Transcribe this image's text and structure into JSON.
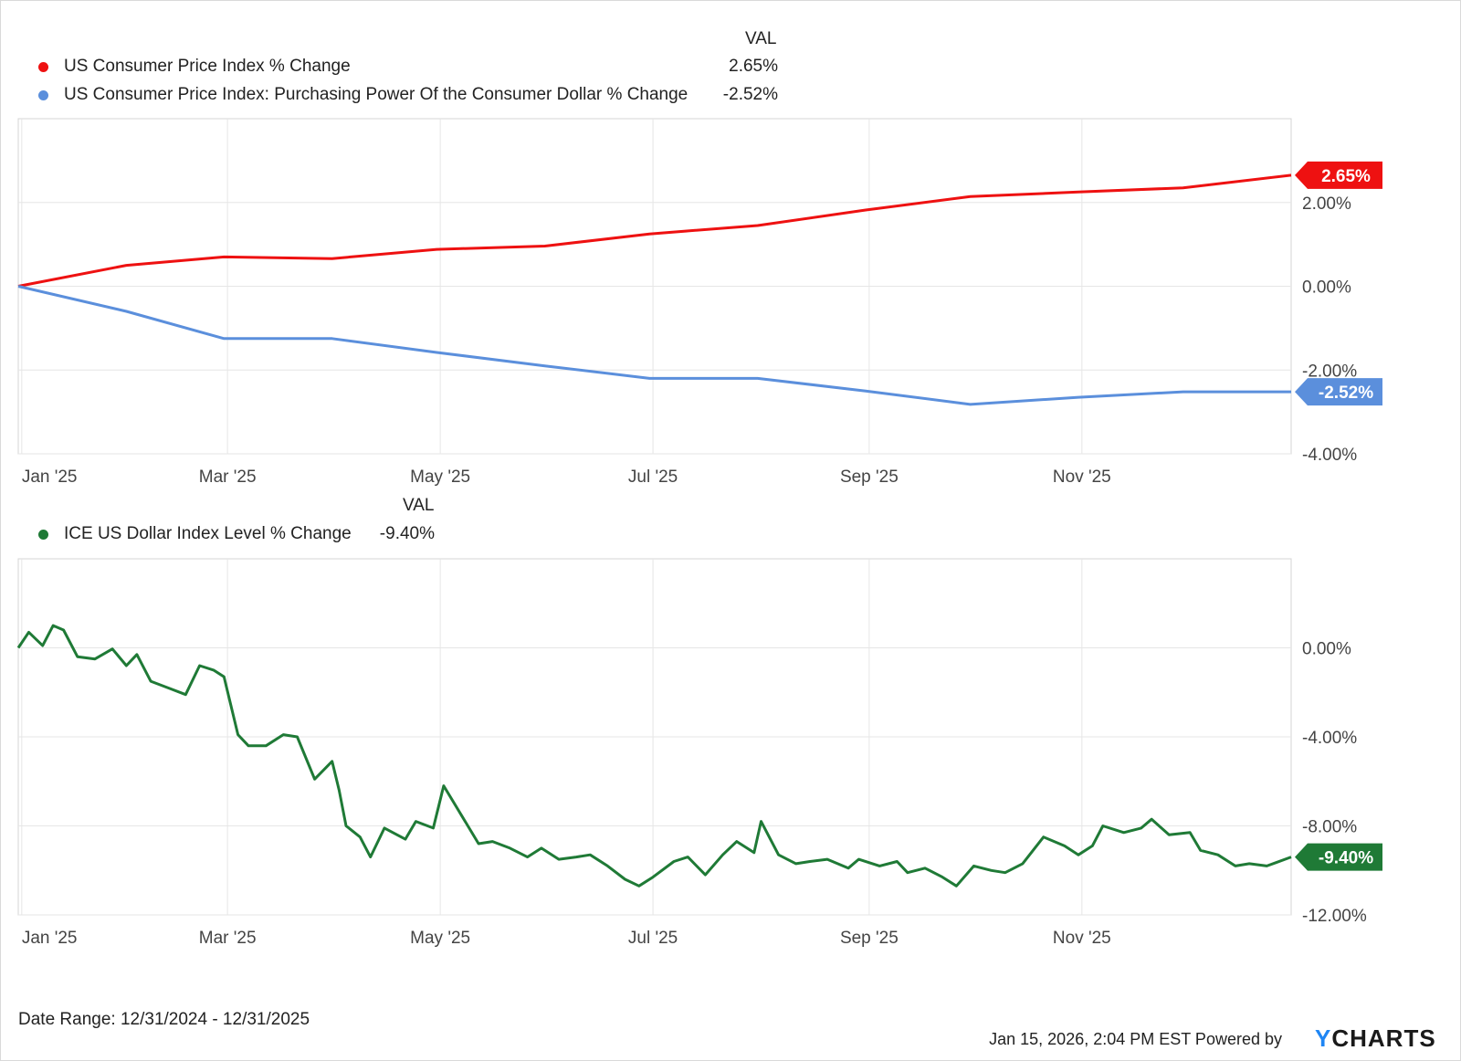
{
  "chart_data": [
    {
      "type": "line",
      "legend_header": "VAL",
      "xlim": [
        "2024-12-31",
        "2025-12-31"
      ],
      "ylim": [
        -4.0,
        4.0
      ],
      "yticks": [
        "2.00%",
        "0.00%",
        "-2.00%",
        "-4.00%"
      ],
      "xticks": [
        "Jan '25",
        "Mar '25",
        "May '25",
        "Jul '25",
        "Sep '25",
        "Nov '25"
      ],
      "grid": true,
      "series": [
        {
          "name": "US Consumer Price Index % Change",
          "value_label": "2.65%",
          "color": "#ee1111",
          "x": [
            "2024-12-31",
            "2025-01-31",
            "2025-02-28",
            "2025-03-31",
            "2025-04-30",
            "2025-05-31",
            "2025-06-30",
            "2025-07-31",
            "2025-08-31",
            "2025-09-30",
            "2025-10-31",
            "2025-11-30",
            "2025-12-31"
          ],
          "y": [
            0.0,
            0.5,
            0.7,
            0.66,
            0.88,
            0.96,
            1.25,
            1.45,
            1.82,
            2.14,
            2.25,
            2.35,
            2.65
          ]
        },
        {
          "name": "US Consumer Price Index: Purchasing Power Of the Consumer Dollar % Change",
          "value_label": "-2.52%",
          "color": "#5b8fdc",
          "x": [
            "2024-12-31",
            "2025-01-31",
            "2025-02-28",
            "2025-03-31",
            "2025-04-30",
            "2025-05-31",
            "2025-06-30",
            "2025-07-31",
            "2025-08-31",
            "2025-09-30",
            "2025-10-31",
            "2025-11-30",
            "2025-12-31"
          ],
          "y": [
            0.0,
            -0.6,
            -1.25,
            -1.25,
            -1.58,
            -1.9,
            -2.2,
            -2.2,
            -2.5,
            -2.82,
            -2.65,
            -2.52,
            -2.52
          ]
        }
      ]
    },
    {
      "type": "line",
      "legend_header": "VAL",
      "xlim": [
        "2024-12-31",
        "2025-12-31"
      ],
      "ylim": [
        -12.0,
        4.0
      ],
      "yticks": [
        "0.00%",
        "-4.00%",
        "-8.00%",
        "-12.00%"
      ],
      "xticks": [
        "Jan '25",
        "Mar '25",
        "May '25",
        "Jul '25",
        "Sep '25",
        "Nov '25"
      ],
      "grid": true,
      "series": [
        {
          "name": "ICE US Dollar Index Level % Change",
          "value_label": "-9.40%",
          "color": "#1f7a36",
          "x": [
            "2024-12-31",
            "2025-01-03",
            "2025-01-07",
            "2025-01-10",
            "2025-01-13",
            "2025-01-17",
            "2025-01-22",
            "2025-01-27",
            "2025-01-31",
            "2025-02-03",
            "2025-02-07",
            "2025-02-12",
            "2025-02-17",
            "2025-02-21",
            "2025-02-25",
            "2025-02-28",
            "2025-03-04",
            "2025-03-07",
            "2025-03-12",
            "2025-03-17",
            "2025-03-21",
            "2025-03-26",
            "2025-03-31",
            "2025-04-02",
            "2025-04-04",
            "2025-04-08",
            "2025-04-11",
            "2025-04-15",
            "2025-04-21",
            "2025-04-24",
            "2025-04-29",
            "2025-05-02",
            "2025-05-07",
            "2025-05-12",
            "2025-05-16",
            "2025-05-21",
            "2025-05-26",
            "2025-05-30",
            "2025-06-04",
            "2025-06-09",
            "2025-06-13",
            "2025-06-18",
            "2025-06-23",
            "2025-06-27",
            "2025-07-01",
            "2025-07-07",
            "2025-07-11",
            "2025-07-16",
            "2025-07-21",
            "2025-07-25",
            "2025-07-30",
            "2025-08-01",
            "2025-08-06",
            "2025-08-11",
            "2025-08-15",
            "2025-08-20",
            "2025-08-26",
            "2025-08-29",
            "2025-09-04",
            "2025-09-09",
            "2025-09-12",
            "2025-09-17",
            "2025-09-22",
            "2025-09-26",
            "2025-10-01",
            "2025-10-06",
            "2025-10-10",
            "2025-10-15",
            "2025-10-21",
            "2025-10-27",
            "2025-10-31",
            "2025-11-04",
            "2025-11-07",
            "2025-11-13",
            "2025-11-18",
            "2025-11-21",
            "2025-11-26",
            "2025-12-02",
            "2025-12-05",
            "2025-12-10",
            "2025-12-15",
            "2025-12-19",
            "2025-12-24",
            "2025-12-31"
          ],
          "y": [
            0.0,
            0.7,
            0.1,
            1.0,
            0.8,
            -0.4,
            -0.5,
            -0.05,
            -0.8,
            -0.3,
            -1.5,
            -1.8,
            -2.1,
            -0.8,
            -1.0,
            -1.3,
            -3.9,
            -4.4,
            -4.4,
            -3.9,
            -4.0,
            -5.9,
            -5.1,
            -6.4,
            -8.0,
            -8.5,
            -9.4,
            -8.1,
            -8.6,
            -7.8,
            -8.1,
            -6.2,
            -7.5,
            -8.8,
            -8.7,
            -9.0,
            -9.4,
            -9.0,
            -9.5,
            -9.4,
            -9.3,
            -9.8,
            -10.4,
            -10.7,
            -10.3,
            -9.6,
            -9.4,
            -10.2,
            -9.3,
            -8.7,
            -9.2,
            -7.8,
            -9.3,
            -9.7,
            -9.6,
            -9.5,
            -9.9,
            -9.5,
            -9.8,
            -9.6,
            -10.1,
            -9.9,
            -10.3,
            -10.7,
            -9.8,
            -10.0,
            -10.1,
            -9.7,
            -8.5,
            -8.9,
            -9.3,
            -8.9,
            -8.0,
            -8.3,
            -8.1,
            -7.7,
            -8.4,
            -8.3,
            -9.1,
            -9.3,
            -9.8,
            -9.7,
            -9.8,
            -9.4
          ]
        }
      ]
    }
  ],
  "footer": {
    "date_range": "Date Range: 12/31/2024 - 12/31/2025",
    "timestamp": "Jan 15, 2026, 2:04 PM EST Powered by",
    "brand_y": "Y",
    "brand_rest": "CHARTS"
  }
}
